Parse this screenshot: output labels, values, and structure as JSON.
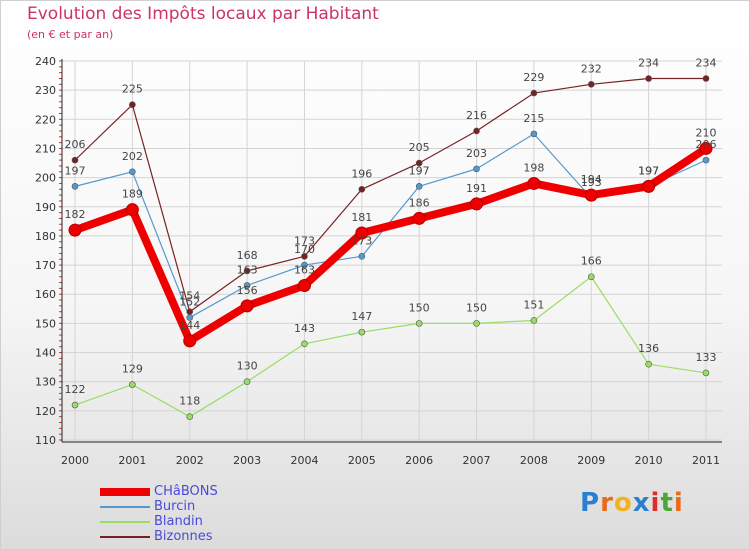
{
  "title": "Evolution des Impôts locaux par Habitant",
  "subtitle": "(en € et par an)",
  "chart_data": {
    "type": "line",
    "title": "Evolution des Impôts locaux par Habitant",
    "ylabel": "(en € et par an)",
    "xlabel": "",
    "x": [
      "2000",
      "2001",
      "2002",
      "2003",
      "2004",
      "2005",
      "2006",
      "2007",
      "2008",
      "2009",
      "2010",
      "2011"
    ],
    "ylim": [
      110,
      240
    ],
    "yticks": [
      110,
      120,
      130,
      140,
      150,
      160,
      170,
      180,
      190,
      200,
      210,
      220,
      230,
      240
    ],
    "grid": true,
    "legend": "bottom-left",
    "series": [
      {
        "name": "CHâBONS",
        "color": "#ee0000",
        "values": [
          182,
          189,
          144,
          156,
          163,
          181,
          186,
          191,
          198,
          194,
          197,
          210
        ]
      },
      {
        "name": "Burcin",
        "color": "#5599cc",
        "values": [
          197,
          202,
          152,
          163,
          170,
          173,
          197,
          203,
          215,
          193,
          197,
          206
        ]
      },
      {
        "name": "Blandin",
        "color": "#99dd66",
        "values": [
          122,
          129,
          118,
          130,
          143,
          147,
          150,
          150,
          151,
          166,
          136,
          133
        ]
      },
      {
        "name": "Bizonnes",
        "color": "#772222",
        "values": [
          206,
          225,
          154,
          168,
          173,
          196,
          205,
          216,
          229,
          232,
          234,
          234
        ]
      }
    ]
  },
  "logo": {
    "letters": [
      "P",
      "r",
      "o",
      "x",
      "i",
      "t",
      "i"
    ],
    "colors": [
      "#2a7fd0",
      "#e86a1a",
      "#f2b21c",
      "#2a7fd0",
      "#e22b2b",
      "#4aa83a",
      "#e86a1a"
    ]
  }
}
